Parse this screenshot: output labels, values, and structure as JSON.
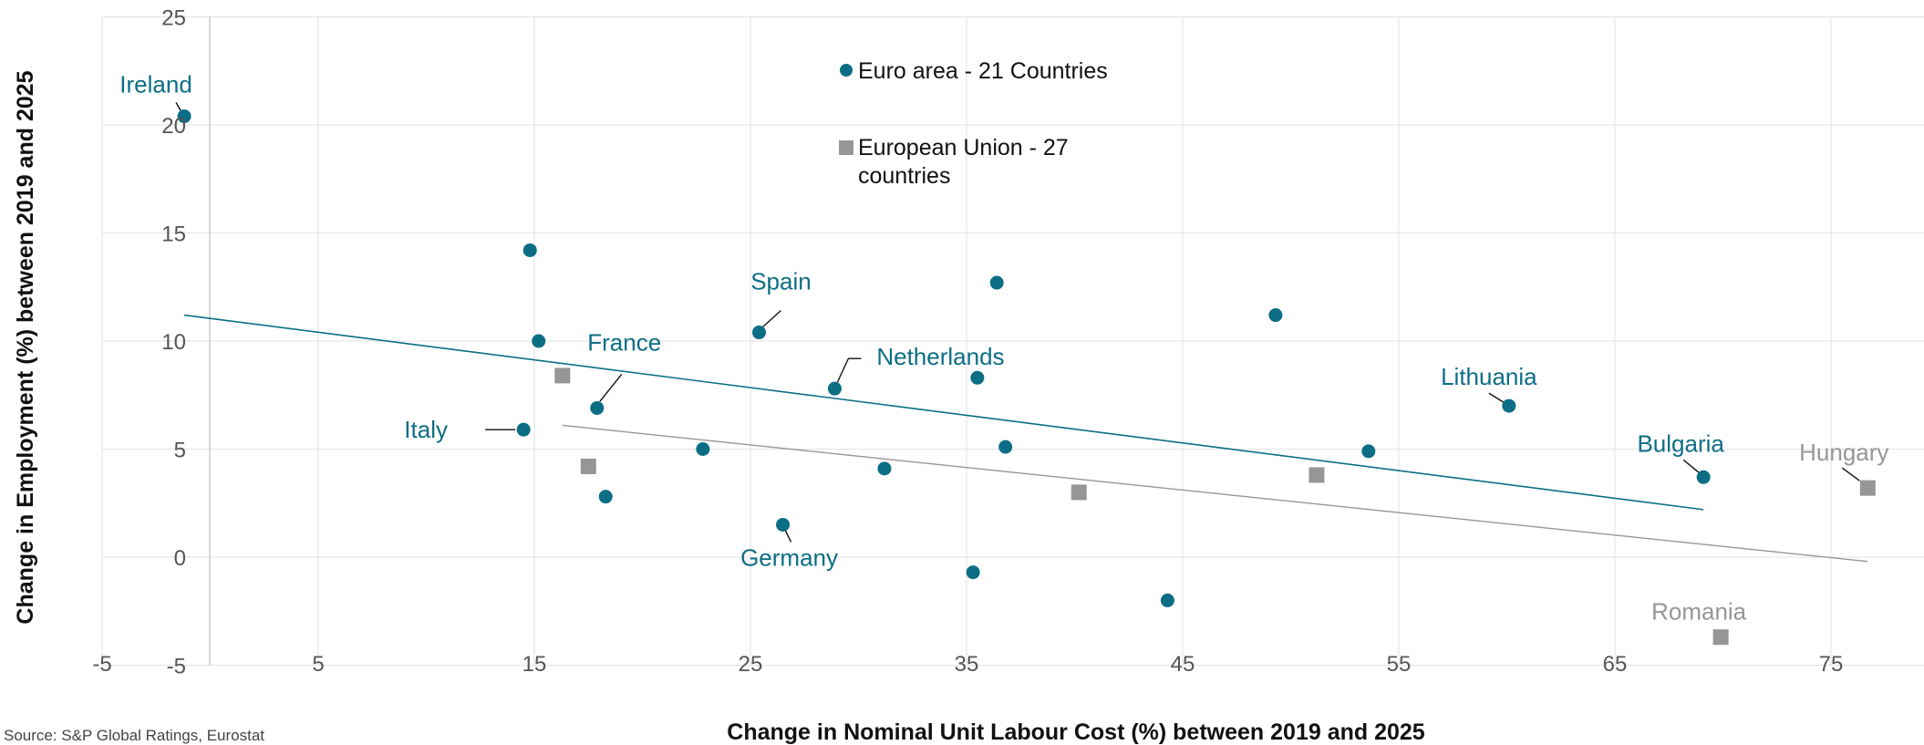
{
  "chart_data": {
    "type": "scatter",
    "xlabel": "Change in Nominal Unit Labour Cost (%) between 2019 and 2025",
    "ylabel": "Change in Employment (%) between 2019 and 2025",
    "xlim": [
      -5,
      80
    ],
    "ylim": [
      -5,
      25
    ],
    "xticks": [
      -5,
      5,
      15,
      25,
      35,
      45,
      55,
      65,
      75
    ],
    "yticks": [
      -5,
      0,
      5,
      10,
      15,
      20,
      25
    ],
    "grid": true,
    "legend_position": "top-center",
    "source": "Source: S&P Global Ratings, Eurostat",
    "series": [
      {
        "name": "Euro area - 21 Countries",
        "marker": "circle",
        "color": "#0c6e85",
        "points": [
          {
            "x": -1.2,
            "y": 20.4,
            "label": "Ireland"
          },
          {
            "x": 14.8,
            "y": 14.2
          },
          {
            "x": 15.2,
            "y": 10.0
          },
          {
            "x": 14.5,
            "y": 5.9,
            "label": "Italy"
          },
          {
            "x": 17.9,
            "y": 6.9,
            "label": "France"
          },
          {
            "x": 18.3,
            "y": 2.8
          },
          {
            "x": 22.8,
            "y": 5.0
          },
          {
            "x": 25.4,
            "y": 10.4,
            "label": "Spain"
          },
          {
            "x": 26.5,
            "y": 1.5,
            "label": "Germany"
          },
          {
            "x": 28.9,
            "y": 7.8,
            "label": "Netherlands"
          },
          {
            "x": 31.2,
            "y": 4.1
          },
          {
            "x": 35.3,
            "y": -0.7
          },
          {
            "x": 35.5,
            "y": 8.3
          },
          {
            "x": 36.4,
            "y": 12.7
          },
          {
            "x": 36.8,
            "y": 5.1
          },
          {
            "x": 44.3,
            "y": -2.0
          },
          {
            "x": 49.3,
            "y": 11.2
          },
          {
            "x": 53.6,
            "y": 4.9
          },
          {
            "x": 60.1,
            "y": 7.0,
            "label": "Lithuania"
          },
          {
            "x": 69.1,
            "y": 3.7,
            "label": "Bulgaria"
          }
        ],
        "trendline": {
          "x": [
            -1.2,
            69.1
          ],
          "y": [
            11.2,
            2.2
          ]
        }
      },
      {
        "name": "European Union - 27 countries",
        "marker": "square",
        "color": "#969696",
        "points": [
          {
            "x": 16.3,
            "y": 8.4
          },
          {
            "x": 17.5,
            "y": 4.2
          },
          {
            "x": 40.2,
            "y": 3.0
          },
          {
            "x": 51.2,
            "y": 3.8
          },
          {
            "x": 69.9,
            "y": -3.7,
            "label": "Romania"
          },
          {
            "x": 76.7,
            "y": 3.2,
            "label": "Hungary"
          }
        ],
        "trendline": {
          "x": [
            16.3,
            76.7
          ],
          "y": [
            6.1,
            -0.2
          ]
        }
      }
    ]
  },
  "colors": {
    "euro": "#0c6e85",
    "eu": "#969696",
    "grid": "#e2e2e2",
    "axis": "#c8c8c8"
  }
}
